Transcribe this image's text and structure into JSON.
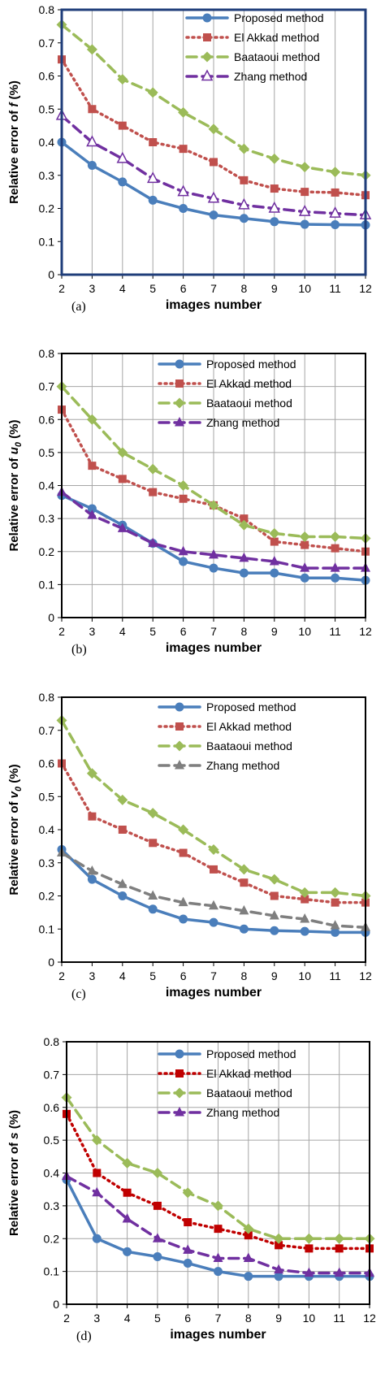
{
  "chart_data": [
    {
      "type": "line",
      "panel_label": "(a)",
      "xlabel": "images number",
      "ylabel": "Relative error of f (%)",
      "ylabel_prefix": "Relative error of ",
      "ylabel_symbol": "f",
      "ylabel_symbol_sub": "",
      "ylabel_suffix": " (%)",
      "x": [
        2,
        3,
        4,
        5,
        6,
        7,
        8,
        9,
        10,
        11,
        12
      ],
      "xlim": [
        2,
        12
      ],
      "ylim": [
        0,
        0.8
      ],
      "yticks": [
        "0",
        "0.1",
        "0.2",
        "0.3",
        "0.4",
        "0.5",
        "0.6",
        "0.7",
        "0.8"
      ],
      "grid": "vertical",
      "legend_position": "top-right",
      "frame_color": "#1f3d7a",
      "series": [
        {
          "name": "Proposed method",
          "color": "#4a7ebb",
          "dash": "solid",
          "marker": "circle",
          "values": [
            0.4,
            0.33,
            0.28,
            0.225,
            0.2,
            0.18,
            0.17,
            0.16,
            0.152,
            0.151,
            0.15
          ]
        },
        {
          "name": "El Akkad method",
          "color": "#c0504d",
          "dash": "dot",
          "marker": "square",
          "values": [
            0.65,
            0.5,
            0.45,
            0.4,
            0.38,
            0.34,
            0.285,
            0.26,
            0.25,
            0.248,
            0.24
          ]
        },
        {
          "name": "Baataoui method",
          "color": "#9bbb59",
          "dash": "dash",
          "marker": "diamond",
          "values": [
            0.755,
            0.68,
            0.59,
            0.55,
            0.49,
            0.44,
            0.38,
            0.35,
            0.325,
            0.31,
            0.3
          ]
        },
        {
          "name": "Zhang method",
          "color": "#7030a0",
          "dash": "dash",
          "marker": "triangle-open",
          "values": [
            0.48,
            0.4,
            0.35,
            0.29,
            0.25,
            0.23,
            0.21,
            0.2,
            0.19,
            0.185,
            0.18
          ]
        }
      ]
    },
    {
      "type": "line",
      "panel_label": "(b)",
      "xlabel": "images number",
      "ylabel": "Relative error of u0 (%)",
      "ylabel_prefix": "Relative error of ",
      "ylabel_symbol": "u",
      "ylabel_symbol_sub": "0",
      "ylabel_suffix": " (%)",
      "x": [
        2,
        3,
        4,
        5,
        6,
        7,
        8,
        9,
        10,
        11,
        12
      ],
      "xlim": [
        2,
        12
      ],
      "ylim": [
        0,
        0.8
      ],
      "yticks": [
        "0",
        "0.1",
        "0.2",
        "0.3",
        "0.4",
        "0.5",
        "0.6",
        "0.7",
        "0.8"
      ],
      "grid": "both",
      "legend_position": "top-right",
      "frame_color": "#000000",
      "series": [
        {
          "name": "Proposed method",
          "color": "#4a7ebb",
          "dash": "solid",
          "marker": "circle",
          "values": [
            0.37,
            0.33,
            0.28,
            0.225,
            0.17,
            0.15,
            0.135,
            0.135,
            0.12,
            0.12,
            0.113
          ]
        },
        {
          "name": "El Akkad method",
          "color": "#c0504d",
          "dash": "dot",
          "marker": "square",
          "values": [
            0.63,
            0.46,
            0.42,
            0.38,
            0.36,
            0.34,
            0.3,
            0.23,
            0.22,
            0.21,
            0.2
          ]
        },
        {
          "name": "Baataoui method",
          "color": "#9bbb59",
          "dash": "dash",
          "marker": "diamond",
          "values": [
            0.7,
            0.6,
            0.5,
            0.45,
            0.4,
            0.34,
            0.28,
            0.255,
            0.245,
            0.245,
            0.24
          ]
        },
        {
          "name": "Zhang method",
          "color": "#7030a0",
          "dash": "dash",
          "marker": "triangle",
          "values": [
            0.38,
            0.31,
            0.27,
            0.225,
            0.2,
            0.19,
            0.18,
            0.17,
            0.15,
            0.15,
            0.15
          ]
        }
      ]
    },
    {
      "type": "line",
      "panel_label": "(c)",
      "xlabel": "images number",
      "ylabel": "Relative error of v0 (%)",
      "ylabel_prefix": "Relative error of ",
      "ylabel_symbol": "v",
      "ylabel_symbol_sub": "0",
      "ylabel_suffix": " (%)",
      "x": [
        2,
        3,
        4,
        5,
        6,
        7,
        8,
        9,
        10,
        11,
        12
      ],
      "xlim": [
        2,
        12
      ],
      "ylim": [
        0,
        0.8
      ],
      "yticks": [
        "0",
        "0.1",
        "0.2",
        "0.3",
        "0.4",
        "0.5",
        "0.6",
        "0.7",
        "0.8"
      ],
      "grid": "none",
      "legend_position": "top-right",
      "frame_color": "#000000",
      "series": [
        {
          "name": "Proposed method",
          "color": "#4a7ebb",
          "dash": "solid",
          "marker": "circle",
          "values": [
            0.34,
            0.25,
            0.2,
            0.16,
            0.13,
            0.12,
            0.1,
            0.095,
            0.093,
            0.09,
            0.09
          ]
        },
        {
          "name": "El Akkad method",
          "color": "#c0504d",
          "dash": "dot",
          "marker": "square",
          "values": [
            0.6,
            0.44,
            0.4,
            0.36,
            0.33,
            0.28,
            0.24,
            0.2,
            0.19,
            0.18,
            0.18
          ]
        },
        {
          "name": "Baataoui method",
          "color": "#9bbb59",
          "dash": "dash",
          "marker": "diamond",
          "values": [
            0.73,
            0.57,
            0.49,
            0.45,
            0.4,
            0.34,
            0.28,
            0.25,
            0.21,
            0.21,
            0.2
          ]
        },
        {
          "name": "Zhang method",
          "color": "#7f7f7f",
          "dash": "dash",
          "marker": "triangle",
          "values": [
            0.33,
            0.275,
            0.235,
            0.2,
            0.18,
            0.17,
            0.155,
            0.14,
            0.13,
            0.11,
            0.105
          ]
        }
      ]
    },
    {
      "type": "line",
      "panel_label": "(d)",
      "xlabel": "images number",
      "ylabel": "Relative error of s (%)",
      "ylabel_prefix": "Relative error of ",
      "ylabel_symbol": "s",
      "ylabel_symbol_sub": "",
      "ylabel_suffix": " (%)",
      "x": [
        2,
        3,
        4,
        5,
        6,
        7,
        8,
        9,
        10,
        11,
        12
      ],
      "xlim": [
        2,
        12
      ],
      "ylim": [
        0,
        0.8
      ],
      "yticks": [
        "0",
        "0.1",
        "0.2",
        "0.3",
        "0.4",
        "0.5",
        "0.6",
        "0.7",
        "0.8"
      ],
      "grid": "both",
      "legend_position": "top-right",
      "frame_color": "#000000",
      "series": [
        {
          "name": "Proposed method",
          "color": "#4a7ebb",
          "dash": "solid",
          "marker": "circle",
          "values": [
            0.38,
            0.2,
            0.16,
            0.145,
            0.125,
            0.1,
            0.085,
            0.085,
            0.085,
            0.085,
            0.085
          ]
        },
        {
          "name": "El Akkad method",
          "color": "#c00000",
          "dash": "dot",
          "marker": "square",
          "values": [
            0.58,
            0.4,
            0.34,
            0.3,
            0.25,
            0.23,
            0.21,
            0.18,
            0.17,
            0.17,
            0.17
          ]
        },
        {
          "name": "Baataoui method",
          "color": "#9bbb59",
          "dash": "dash",
          "marker": "diamond",
          "values": [
            0.63,
            0.5,
            0.43,
            0.4,
            0.34,
            0.3,
            0.23,
            0.2,
            0.2,
            0.2,
            0.2
          ]
        },
        {
          "name": "Zhang method",
          "color": "#7030a0",
          "dash": "dash",
          "marker": "triangle",
          "values": [
            0.39,
            0.34,
            0.26,
            0.2,
            0.165,
            0.14,
            0.14,
            0.105,
            0.095,
            0.095,
            0.095
          ]
        }
      ]
    }
  ]
}
